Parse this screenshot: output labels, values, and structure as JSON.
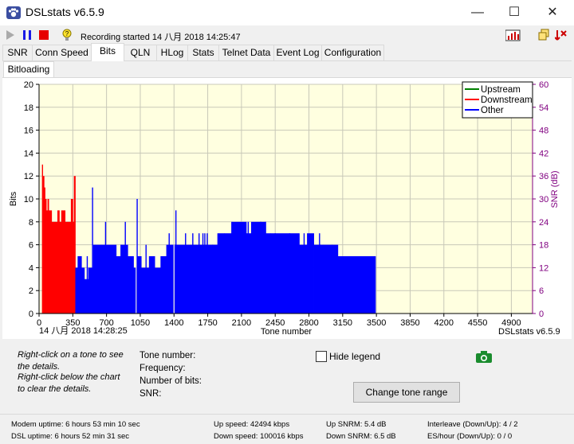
{
  "window": {
    "title": "DSLstats v6.5.9",
    "minimize": "—",
    "maximize": "☐",
    "close": "✕"
  },
  "toolbar": {
    "recording_status": "Recording started 14 八月 2018 14:25:47"
  },
  "tabs": [
    {
      "label": "SNR"
    },
    {
      "label": "Conn Speed"
    },
    {
      "label": "Bits",
      "active": true
    },
    {
      "label": "QLN"
    },
    {
      "label": "HLog"
    },
    {
      "label": "Stats"
    },
    {
      "label": "Telnet Data"
    },
    {
      "label": "Event Log"
    },
    {
      "label": "Configuration"
    }
  ],
  "subtab": {
    "label": "Bitloading"
  },
  "chart_data": {
    "type": "bar",
    "xlabel": "Tone number",
    "ylabel": "Bits",
    "y2label": "SNR (dB)",
    "xlim": [
      0,
      5120
    ],
    "ylim": [
      0,
      20
    ],
    "y2lim": [
      0,
      60
    ],
    "x_ticks": [
      "0",
      "350",
      "700",
      "1050",
      "1400",
      "1750",
      "2100",
      "2450",
      "2800",
      "3150",
      "3500",
      "3850",
      "4200",
      "4550",
      "4900"
    ],
    "y_ticks": [
      "0",
      "2",
      "4",
      "6",
      "8",
      "10",
      "12",
      "14",
      "16",
      "18",
      "20"
    ],
    "y2_ticks": [
      "0",
      "6",
      "12",
      "18",
      "24",
      "30",
      "36",
      "42",
      "48",
      "54",
      "60"
    ],
    "timestamp": "14 八月 2018 14:28:25",
    "watermark": "DSLstats v6.5.9",
    "grid": true,
    "legend_position": "top-right",
    "colors": {
      "upstream": "#008000",
      "downstream": "#ff0000",
      "other": "#0000ff",
      "plot_bg": "#ffffe0",
      "y2_axis": "#800080"
    },
    "series": [
      {
        "name": "Upstream",
        "color": "#008000",
        "segments": []
      },
      {
        "name": "Downstream",
        "color": "#ff0000",
        "segments": [
          [
            30,
            38,
            13
          ],
          [
            38,
            52,
            12
          ],
          [
            52,
            62,
            11
          ],
          [
            62,
            75,
            10
          ],
          [
            75,
            88,
            9
          ],
          [
            88,
            100,
            10
          ],
          [
            100,
            130,
            9
          ],
          [
            130,
            190,
            8
          ],
          [
            190,
            210,
            9
          ],
          [
            210,
            230,
            8
          ],
          [
            230,
            270,
            9
          ],
          [
            270,
            330,
            8
          ],
          [
            330,
            350,
            10
          ],
          [
            350,
            370,
            8
          ],
          [
            370,
            376,
            12
          ]
        ]
      },
      {
        "name": "Other",
        "color": "#0000ff",
        "segments": [
          [
            376,
            400,
            4
          ],
          [
            400,
            440,
            5
          ],
          [
            440,
            470,
            4
          ],
          [
            470,
            510,
            3
          ],
          [
            510,
            560,
            4
          ],
          [
            560,
            580,
            6
          ],
          [
            580,
            650,
            6
          ],
          [
            650,
            700,
            6
          ],
          [
            700,
            800,
            6
          ],
          [
            800,
            850,
            5
          ],
          [
            850,
            920,
            6
          ],
          [
            920,
            980,
            5
          ],
          [
            980,
            1010,
            4
          ],
          [
            1010,
            1060,
            5
          ],
          [
            1060,
            1140,
            4
          ],
          [
            1140,
            1200,
            5
          ],
          [
            1200,
            1260,
            4
          ],
          [
            1260,
            1320,
            5
          ],
          [
            1320,
            1420,
            6
          ],
          [
            1420,
            1520,
            6
          ],
          [
            1520,
            1580,
            6
          ],
          [
            1580,
            1700,
            6
          ],
          [
            1700,
            1850,
            6
          ],
          [
            1850,
            1920,
            7
          ],
          [
            1920,
            2000,
            7
          ],
          [
            2000,
            2150,
            8
          ],
          [
            2150,
            2200,
            7
          ],
          [
            2200,
            2350,
            8
          ],
          [
            2350,
            2400,
            7
          ],
          [
            2400,
            2700,
            7
          ],
          [
            2700,
            2780,
            6
          ],
          [
            2780,
            2850,
            7
          ],
          [
            2850,
            2950,
            6
          ],
          [
            2950,
            3100,
            6
          ],
          [
            3100,
            3150,
            5
          ],
          [
            3150,
            3300,
            5
          ],
          [
            3300,
            3490,
            5
          ]
        ]
      }
    ],
    "spikes": [
      [
        360,
        8
      ],
      [
        367,
        12
      ],
      [
        500,
        5
      ],
      [
        555,
        11
      ],
      [
        690,
        8
      ],
      [
        850,
        6
      ],
      [
        895,
        8
      ],
      [
        1008,
        0
      ],
      [
        1018,
        10
      ],
      [
        1110,
        6
      ],
      [
        1160,
        4
      ],
      [
        1275,
        5
      ],
      [
        1350,
        7
      ],
      [
        1400,
        0
      ],
      [
        1413,
        6
      ],
      [
        1420,
        9
      ],
      [
        1520,
        7
      ],
      [
        1595,
        7
      ],
      [
        1660,
        7
      ],
      [
        1700,
        7
      ],
      [
        1720,
        7
      ],
      [
        1745,
        7
      ],
      [
        1800,
        6
      ],
      [
        1995,
        6
      ],
      [
        2000,
        8
      ],
      [
        2040,
        6
      ],
      [
        2125,
        7
      ],
      [
        2150,
        7
      ],
      [
        2170,
        8
      ],
      [
        2300,
        8
      ],
      [
        2305,
        6
      ],
      [
        2350,
        8
      ],
      [
        2450,
        7
      ],
      [
        2600,
        7
      ],
      [
        2750,
        7
      ],
      [
        2910,
        7
      ],
      [
        2920,
        6
      ],
      [
        3040,
        6
      ],
      [
        3170,
        5
      ]
    ]
  },
  "details": {
    "hint_1": "Right-click on a tone to see",
    "hint_2": "the details.",
    "hint_3": "Right-click below the chart",
    "hint_4": "to clear the details.",
    "tone_label": "Tone number:",
    "freq_label": "Frequency:",
    "bits_label": "Number of bits:",
    "snr_label": "SNR:",
    "hide_legend": "Hide legend",
    "change_range": "Change tone range"
  },
  "status": {
    "modem_uptime": "Modem uptime:  6 hours 53 min 10 sec",
    "dsl_uptime": "DSL uptime:  6 hours 52 min 31 sec",
    "up_speed": "Up speed: 42494 kbps",
    "down_speed": "Down speed: 100016 kbps",
    "up_snrm": "Up SNRM: 5.4 dB",
    "down_snrm": "Down SNRM: 6.5 dB",
    "interleave": "Interleave (Down/Up): 4 / 2",
    "es_hour": "ES/hour (Down/Up): 0 / 0"
  }
}
